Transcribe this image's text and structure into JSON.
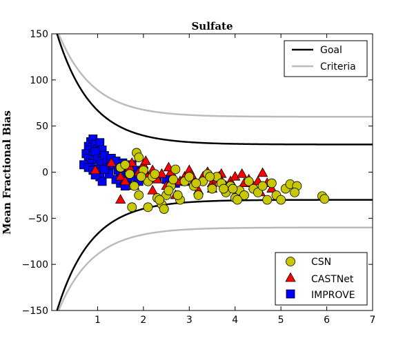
{
  "chart_data": {
    "type": "scatter",
    "title": "Sulfate",
    "xlabel": "",
    "ylabel": "Mean Fractional Bias",
    "xlim": [
      0,
      7
    ],
    "ylim": [
      -150,
      150
    ],
    "xticks": [
      1,
      2,
      3,
      4,
      5,
      6,
      7
    ],
    "yticks": [
      -150,
      -100,
      -50,
      0,
      50,
      100,
      150
    ],
    "ytick_labels": [
      "−150",
      "−100",
      "−50",
      "0",
      "50",
      "100",
      "150"
    ],
    "grid": false,
    "lines": [
      {
        "name": "Goal",
        "color": "#000000",
        "asymptote": 30
      },
      {
        "name": "Criteria",
        "color": "#bbbbbb",
        "asymptote": 60
      }
    ],
    "series": [
      {
        "name": "IMPROVE",
        "marker": "square",
        "color": "#0000ff",
        "points": [
          [
            0.8,
            28
          ],
          [
            0.85,
            33
          ],
          [
            0.9,
            36
          ],
          [
            0.95,
            30
          ],
          [
            1.0,
            25
          ],
          [
            1.05,
            32
          ],
          [
            1.1,
            24
          ],
          [
            0.75,
            20
          ],
          [
            0.8,
            15
          ],
          [
            0.85,
            10
          ],
          [
            0.9,
            18
          ],
          [
            0.95,
            22
          ],
          [
            1.0,
            14
          ],
          [
            1.05,
            8
          ],
          [
            1.1,
            12
          ],
          [
            1.15,
            18
          ],
          [
            0.7,
            8
          ],
          [
            0.8,
            5
          ],
          [
            0.9,
            2
          ],
          [
            1.0,
            0
          ],
          [
            1.05,
            -5
          ],
          [
            1.1,
            -10
          ],
          [
            1.2,
            10
          ],
          [
            1.25,
            5
          ],
          [
            1.3,
            15
          ],
          [
            1.35,
            8
          ],
          [
            1.4,
            12
          ],
          [
            1.45,
            2
          ],
          [
            1.5,
            -3
          ],
          [
            1.55,
            10
          ],
          [
            1.6,
            5
          ],
          [
            1.65,
            -8
          ],
          [
            1.7,
            0
          ],
          [
            1.75,
            8
          ],
          [
            1.8,
            -5
          ],
          [
            1.85,
            2
          ],
          [
            1.9,
            -10
          ],
          [
            1.5,
            -12
          ],
          [
            1.6,
            -15
          ],
          [
            1.4,
            -8
          ],
          [
            2.3,
            -5
          ],
          [
            2.5,
            -8
          ],
          [
            2.7,
            -12
          ],
          [
            2.9,
            -10
          ],
          [
            1.25,
            -2
          ],
          [
            1.15,
            3
          ],
          [
            0.95,
            -3
          ]
        ]
      },
      {
        "name": "CASTNet",
        "marker": "triangle",
        "color": "#ff0000",
        "points": [
          [
            0.95,
            2
          ],
          [
            1.3,
            10
          ],
          [
            1.5,
            -5
          ],
          [
            1.6,
            -10
          ],
          [
            1.7,
            5
          ],
          [
            1.8,
            -15
          ],
          [
            1.9,
            0
          ],
          [
            2.0,
            8
          ],
          [
            2.1,
            -5
          ],
          [
            2.2,
            2
          ],
          [
            2.3,
            -8
          ],
          [
            2.4,
            -2
          ],
          [
            2.5,
            -15
          ],
          [
            2.6,
            0
          ],
          [
            2.7,
            -25
          ],
          [
            2.8,
            -10
          ],
          [
            2.9,
            -5
          ],
          [
            3.0,
            2
          ],
          [
            3.1,
            -10
          ],
          [
            3.2,
            -20
          ],
          [
            3.3,
            -5
          ],
          [
            3.4,
            0
          ],
          [
            3.5,
            -12
          ],
          [
            3.6,
            -8
          ],
          [
            3.7,
            -2
          ],
          [
            3.8,
            -15
          ],
          [
            3.9,
            -10
          ],
          [
            4.0,
            -5
          ],
          [
            4.1,
            -20
          ],
          [
            4.15,
            -2
          ],
          [
            4.2,
            -12
          ],
          [
            4.3,
            -8
          ],
          [
            4.4,
            -15
          ],
          [
            4.5,
            -10
          ],
          [
            4.6,
            -1
          ],
          [
            4.7,
            -12
          ],
          [
            4.8,
            -18
          ],
          [
            1.5,
            -30
          ],
          [
            2.2,
            -20
          ],
          [
            3.5,
            -18
          ],
          [
            1.75,
            10
          ],
          [
            2.05,
            12
          ],
          [
            2.55,
            5
          ],
          [
            3.05,
            -3
          ],
          [
            3.65,
            -5
          ],
          [
            4.55,
            -22
          ]
        ]
      },
      {
        "name": "CSN",
        "marker": "circle",
        "color": "#c8c800",
        "points": [
          [
            1.85,
            21
          ],
          [
            1.9,
            16
          ],
          [
            1.5,
            5
          ],
          [
            1.6,
            8
          ],
          [
            1.7,
            -2
          ],
          [
            1.8,
            -15
          ],
          [
            1.9,
            -25
          ],
          [
            2.0,
            2
          ],
          [
            2.1,
            -10
          ],
          [
            2.2,
            -5
          ],
          [
            2.3,
            -28
          ],
          [
            2.4,
            -35
          ],
          [
            2.45,
            -40
          ],
          [
            2.5,
            -25
          ],
          [
            2.6,
            -15
          ],
          [
            2.7,
            3
          ],
          [
            2.8,
            -30
          ],
          [
            2.9,
            -10
          ],
          [
            3.0,
            -5
          ],
          [
            3.1,
            -15
          ],
          [
            3.2,
            -25
          ],
          [
            3.3,
            -10
          ],
          [
            3.4,
            -2
          ],
          [
            3.5,
            -18
          ],
          [
            3.6,
            -5
          ],
          [
            3.7,
            -12
          ],
          [
            3.8,
            -22
          ],
          [
            3.9,
            -15
          ],
          [
            4.0,
            -28
          ],
          [
            4.1,
            -20
          ],
          [
            4.2,
            -25
          ],
          [
            4.3,
            -10
          ],
          [
            4.4,
            -18
          ],
          [
            4.5,
            -22
          ],
          [
            4.6,
            -15
          ],
          [
            4.7,
            -30
          ],
          [
            4.8,
            -12
          ],
          [
            4.9,
            -25
          ],
          [
            5.0,
            -30
          ],
          [
            5.1,
            -18
          ],
          [
            5.2,
            -13
          ],
          [
            5.35,
            -15
          ],
          [
            5.3,
            -22
          ],
          [
            5.9,
            -26
          ],
          [
            5.95,
            -29
          ],
          [
            1.75,
            -38
          ],
          [
            2.1,
            -38
          ],
          [
            2.35,
            -30
          ],
          [
            2.55,
            -20
          ],
          [
            2.65,
            -8
          ],
          [
            3.15,
            -12
          ],
          [
            3.45,
            -5
          ],
          [
            3.75,
            -18
          ],
          [
            4.05,
            -30
          ],
          [
            2.25,
            -2
          ],
          [
            1.95,
            -5
          ],
          [
            2.75,
            -25
          ],
          [
            3.95,
            -18
          ]
        ]
      }
    ],
    "legends": [
      {
        "position": "top-right",
        "entries": [
          "Goal",
          "Criteria"
        ]
      },
      {
        "position": "bottom-right",
        "entries": [
          "CSN",
          "CASTNet",
          "IMPROVE"
        ]
      }
    ]
  }
}
